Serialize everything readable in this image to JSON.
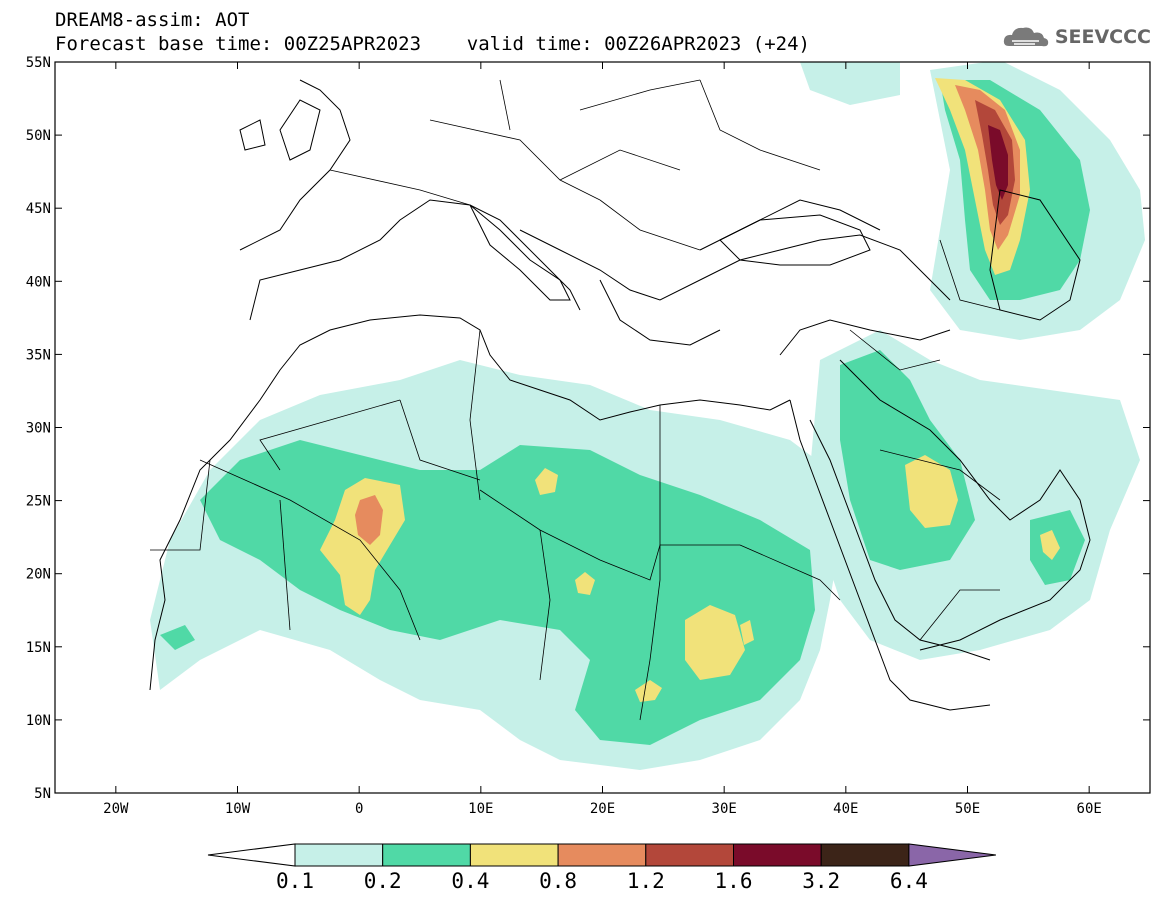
{
  "header": {
    "model_line": "DREAM8-assim: AOT",
    "time_line": "Forecast base time: 00Z25APR2023    valid time: 00Z26APR2023 (+24)",
    "logo_text": "SEEVCCC"
  },
  "map": {
    "lon_range": [
      -25,
      65
    ],
    "lat_range": [
      5,
      55
    ],
    "lat_ticks": [
      "55N",
      "50N",
      "45N",
      "40N",
      "35N",
      "30N",
      "25N",
      "20N",
      "15N",
      "10N",
      "5N"
    ],
    "lon_ticks": [
      "20W",
      "10W",
      "0",
      "10E",
      "20E",
      "30E",
      "40E",
      "50E",
      "60E"
    ],
    "lat_tick_values": [
      55,
      50,
      45,
      40,
      35,
      30,
      25,
      20,
      15,
      10,
      5
    ],
    "lon_tick_values": [
      -20,
      -10,
      0,
      10,
      20,
      30,
      40,
      50,
      60
    ]
  },
  "colorbar": {
    "labels": [
      "0.1",
      "0.2",
      "0.4",
      "0.8",
      "1.2",
      "1.6",
      "3.2",
      "6.4"
    ],
    "colors": [
      "#c6f0e8",
      "#50d9a6",
      "#f1e27a",
      "#e68b5e",
      "#b3473a",
      "#7a0b2a",
      "#3c2418",
      "#8a66a8"
    ],
    "under_color": "#ffffff"
  },
  "palette": {
    "land_line": "#000000",
    "background": "#ffffff"
  }
}
